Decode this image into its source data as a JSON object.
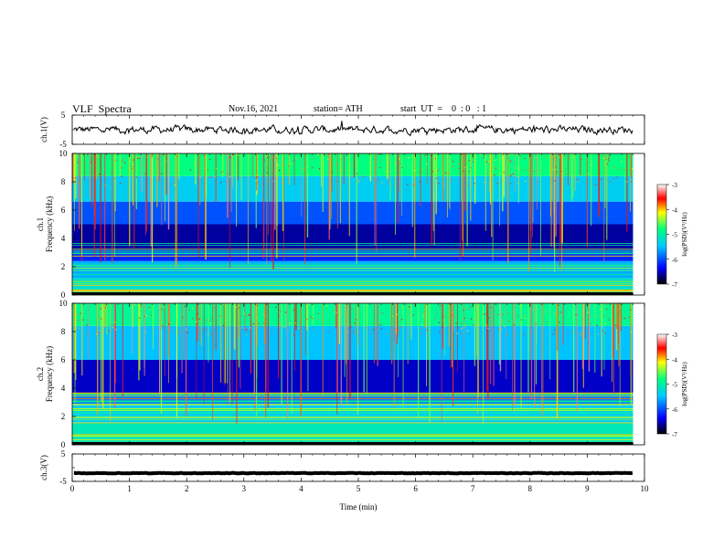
{
  "header": {
    "title": "VLF  Spectra",
    "date": "Nov.16, 2021",
    "station": "station= ATH",
    "start_ut": "start  UT  =    0  : 0   : 1"
  },
  "colors": {
    "background": "#ffffff",
    "axis": "#000000",
    "spectrogram_floor": "#0a1a8c",
    "colormap": [
      "#000000",
      "#0000ff",
      "#00c8ff",
      "#00ff80",
      "#ffff00",
      "#ff0000",
      "#ffffff"
    ]
  },
  "chart_data": [
    {
      "type": "line",
      "name": "ch1-waveform",
      "ylabel": "ch.1(V)",
      "ylim": [
        -5,
        5
      ],
      "yticks": [
        "5",
        "-5"
      ],
      "xlim": [
        0,
        10
      ],
      "description_values": {
        "mean_v": 0.0,
        "amplitude_v": 1.2
      }
    },
    {
      "type": "heatmap",
      "name": "ch1-spectrogram",
      "ylabel_channel": "ch.1",
      "ylabel": "Frequency  (kHz)",
      "ylim": [
        0,
        10
      ],
      "yticks": [
        "0",
        "2",
        "4",
        "6",
        "8",
        "10"
      ],
      "xlim": [
        0,
        9.8
      ],
      "colorbar": {
        "label": "log(PSD)(V²/Hz)",
        "range": [
          -7,
          -3
        ],
        "ticks": [
          "-3",
          "-4",
          "-5",
          "-6",
          "-7"
        ]
      },
      "band_levels": [
        {
          "f": [
            0,
            0.2
          ],
          "level": -7.0
        },
        {
          "f": [
            0.2,
            1.2
          ],
          "level": -5.2
        },
        {
          "f": [
            1.2,
            2.4
          ],
          "level": -5.6
        },
        {
          "f": [
            2.4,
            3.2
          ],
          "level": -6.2
        },
        {
          "f": [
            3.2,
            5.0
          ],
          "level": -6.6
        },
        {
          "f": [
            5.0,
            6.6
          ],
          "level": -6.0
        },
        {
          "f": [
            6.6,
            8.4
          ],
          "level": -5.4
        },
        {
          "f": [
            8.4,
            10
          ],
          "level": -4.8
        }
      ]
    },
    {
      "type": "heatmap",
      "name": "ch2-spectrogram",
      "ylabel_channel": "ch.2",
      "ylabel": "Frequency  (kHz)",
      "ylim": [
        0,
        10
      ],
      "yticks": [
        "0",
        "2",
        "4",
        "6",
        "8",
        "10"
      ],
      "xlim": [
        0,
        9.8
      ],
      "colorbar": {
        "label": "log(PSD)(V²/Hz)",
        "range": [
          -7,
          -3
        ],
        "ticks": [
          "-3",
          "-4",
          "-5",
          "-6",
          "-7"
        ]
      },
      "band_levels": [
        {
          "f": [
            0,
            0.2
          ],
          "level": -7.0
        },
        {
          "f": [
            0.2,
            1.6
          ],
          "level": -5.1
        },
        {
          "f": [
            1.6,
            2.8
          ],
          "level": -5.4
        },
        {
          "f": [
            2.8,
            3.6
          ],
          "level": -5.8
        },
        {
          "f": [
            3.6,
            6.0
          ],
          "level": -6.5
        },
        {
          "f": [
            6.0,
            8.4
          ],
          "level": -5.5
        },
        {
          "f": [
            8.4,
            10
          ],
          "level": -4.9
        }
      ]
    },
    {
      "type": "line",
      "name": "ch3-waveform",
      "ylabel": "ch.3(V)",
      "ylim": [
        -5,
        5
      ],
      "yticks": [
        "5",
        "-5"
      ],
      "xlim": [
        0,
        10
      ],
      "description_values": {
        "mean_v": -2.0,
        "amplitude_v": 0.1
      }
    }
  ],
  "xaxis": {
    "label": "Time  (min)",
    "range": [
      0,
      10
    ],
    "ticks": [
      "0",
      "1",
      "2",
      "3",
      "4",
      "5",
      "6",
      "7",
      "8",
      "9",
      "10"
    ]
  }
}
